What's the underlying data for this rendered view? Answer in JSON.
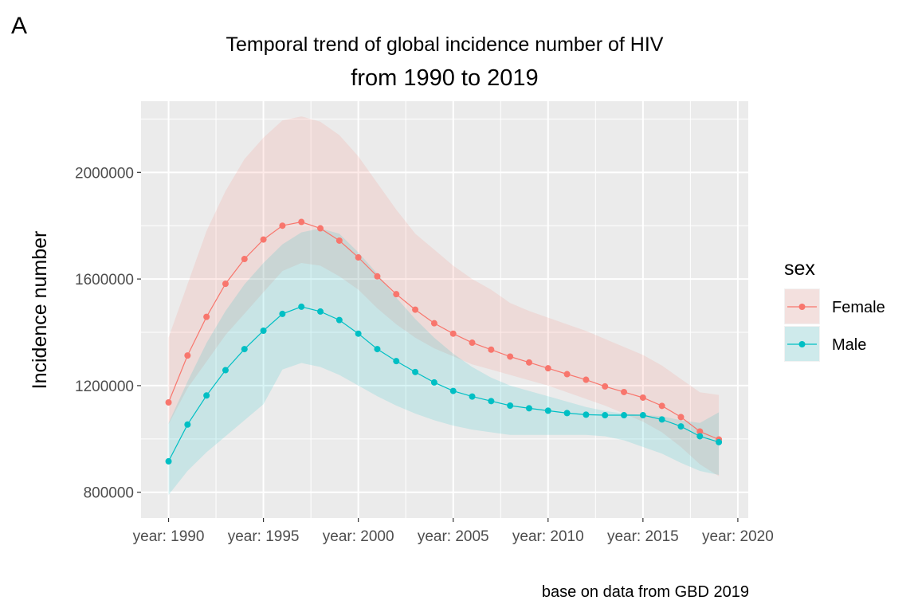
{
  "panel_tag": "A",
  "chart_data": {
    "type": "line",
    "title": "Temporal trend of global incidence number of HIV",
    "subtitle": "from 1990 to 2019",
    "xlabel": "",
    "ylabel": "Incidence number",
    "caption": "base on data from GBD 2019",
    "x": [
      1990,
      1991,
      1992,
      1993,
      1994,
      1995,
      1996,
      1997,
      1998,
      1999,
      2000,
      2001,
      2002,
      2003,
      2004,
      2005,
      2006,
      2007,
      2008,
      2009,
      2010,
      2011,
      2012,
      2013,
      2014,
      2015,
      2016,
      2017,
      2018,
      2019
    ],
    "xlim": [
      1990,
      2020
    ],
    "ylim": [
      800000,
      2200000
    ],
    "x_ticks": [
      1990,
      1995,
      2000,
      2005,
      2010,
      2015,
      2020
    ],
    "x_tick_labels": [
      "year: 1990",
      "year: 1995",
      "year: 2000",
      "year: 2005",
      "year: 2010",
      "year: 2015",
      "year: 2020"
    ],
    "y_ticks": [
      800000,
      1200000,
      1600000,
      2000000
    ],
    "y_tick_labels": [
      "800000",
      "1200000",
      "1600000",
      "2000000"
    ],
    "grid": true,
    "legend": {
      "title": "sex",
      "position": "right"
    },
    "series": [
      {
        "name": "Female",
        "color": "#F8766D",
        "values": [
          1137000,
          1313000,
          1458000,
          1582000,
          1675000,
          1748000,
          1800000,
          1814000,
          1790000,
          1744000,
          1681000,
          1610000,
          1543000,
          1485000,
          1434000,
          1395000,
          1361000,
          1335000,
          1309000,
          1287000,
          1265000,
          1243000,
          1222000,
          1197000,
          1176000,
          1155000,
          1124000,
          1082000,
          1028000,
          998000
        ],
        "lower": [
          1055000,
          1190000,
          1290000,
          1390000,
          1470000,
          1550000,
          1630000,
          1660000,
          1650000,
          1610000,
          1560000,
          1490000,
          1430000,
          1380000,
          1340000,
          1310000,
          1280000,
          1260000,
          1240000,
          1220000,
          1200000,
          1175000,
          1150000,
          1125000,
          1095000,
          1065000,
          1025000,
          970000,
          905000,
          860000
        ],
        "upper": [
          1380000,
          1580000,
          1780000,
          1930000,
          2050000,
          2130000,
          2195000,
          2210000,
          2190000,
          2140000,
          2060000,
          1960000,
          1860000,
          1770000,
          1710000,
          1650000,
          1600000,
          1560000,
          1510000,
          1480000,
          1455000,
          1430000,
          1405000,
          1375000,
          1345000,
          1315000,
          1275000,
          1225000,
          1175000,
          1165000
        ]
      },
      {
        "name": "Male",
        "color": "#00BFC4",
        "values": [
          916000,
          1054000,
          1163000,
          1258000,
          1337000,
          1406000,
          1469000,
          1496000,
          1478000,
          1446000,
          1395000,
          1337000,
          1292000,
          1251000,
          1212000,
          1180000,
          1159000,
          1142000,
          1125000,
          1115000,
          1106000,
          1097000,
          1091000,
          1089000,
          1089000,
          1089000,
          1073000,
          1047000,
          1010000,
          988000
        ],
        "lower": [
          790000,
          880000,
          950000,
          1010000,
          1070000,
          1130000,
          1260000,
          1285000,
          1270000,
          1240000,
          1200000,
          1160000,
          1125000,
          1095000,
          1070000,
          1050000,
          1035000,
          1025000,
          1015000,
          1015000,
          1015000,
          1015000,
          1015000,
          1010000,
          995000,
          970000,
          945000,
          910000,
          880000,
          865000
        ],
        "upper": [
          1060000,
          1215000,
          1360000,
          1480000,
          1580000,
          1660000,
          1730000,
          1775000,
          1790000,
          1770000,
          1700000,
          1620000,
          1530000,
          1450000,
          1380000,
          1320000,
          1270000,
          1230000,
          1200000,
          1180000,
          1160000,
          1140000,
          1120000,
          1105000,
          1095000,
          1090000,
          1085000,
          1070000,
          1060000,
          1100000
        ]
      }
    ]
  }
}
